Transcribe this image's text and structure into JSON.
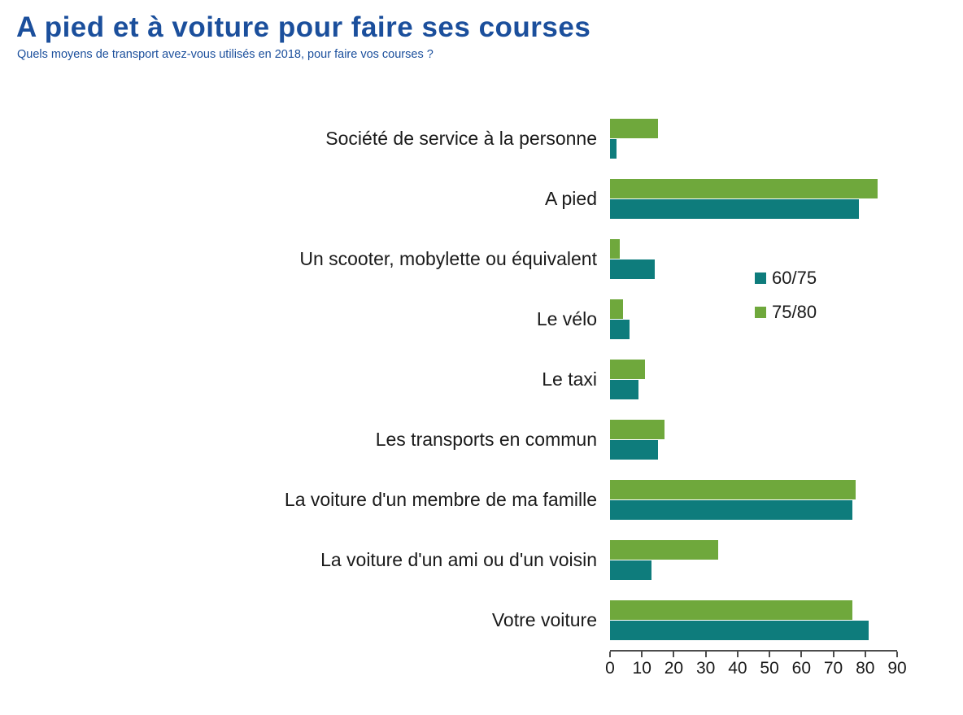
{
  "title": "A pied et à voiture pour faire ses courses",
  "subtitle": "Quels moyens de transport avez-vous utilisés en 2018, pour faire vos courses ?",
  "colors": {
    "title": "#1B4F9C",
    "series_60_75": "#0E7C7C",
    "series_75_80": "#6FA83C",
    "axis": "#4d4d4d"
  },
  "legend": [
    {
      "label": "60/75",
      "color": "#0E7C7C"
    },
    {
      "label": "75/80",
      "color": "#6FA83C"
    }
  ],
  "chart_data": {
    "type": "bar",
    "orientation": "horizontal",
    "title": "A pied et à voiture pour faire ses courses",
    "subtitle": "Quels moyens de transport avez-vous utilisés en 2018, pour faire vos courses ?",
    "categories": [
      "Société de service à la personne",
      "A pied",
      "Un scooter, mobylette ou équivalent",
      "Le vélo",
      "Le taxi",
      "Les transports en commun",
      "La voiture d'un membre de ma famille",
      "La voiture d'un ami ou d'un voisin",
      "Votre voiture"
    ],
    "series": [
      {
        "name": "60/75",
        "color": "#0E7C7C",
        "values": [
          2,
          78,
          14,
          6,
          9,
          15,
          76,
          13,
          81
        ]
      },
      {
        "name": "75/80",
        "color": "#6FA83C",
        "values": [
          15,
          84,
          3,
          4,
          11,
          17,
          77,
          34,
          76
        ]
      }
    ],
    "bar_order_top_to_bottom": [
      "75/80",
      "60/75"
    ],
    "xlabel": "",
    "ylabel": "",
    "xlim": [
      0,
      90
    ],
    "xticks": [
      0,
      10,
      20,
      30,
      40,
      50,
      60,
      70,
      80,
      90
    ],
    "grid": false,
    "legend_position": "right-middle"
  }
}
